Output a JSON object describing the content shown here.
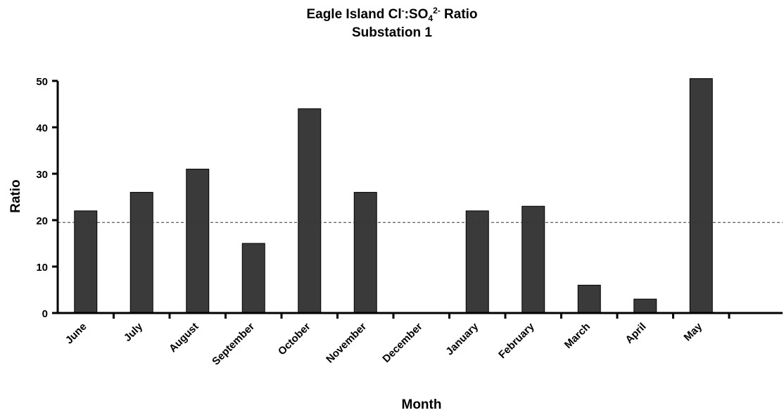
{
  "chart_data": {
    "type": "bar",
    "title": {
      "line1_prefix": "Eagle Island Cl",
      "line1_sup1": "-",
      "line1_mid": ":SO",
      "line1_sub": "4",
      "line1_sup2": "2-",
      "line1_suffix": " Ratio",
      "line2": "Substation 1"
    },
    "xlabel": "Month",
    "ylabel": "Ratio",
    "categories": [
      "June",
      "July",
      "August",
      "September",
      "October",
      "November",
      "December",
      "January",
      "February",
      "March",
      "April",
      "May"
    ],
    "values": [
      22,
      26,
      31,
      15,
      44,
      26,
      null,
      22,
      23,
      6,
      3,
      50.5
    ],
    "ylim": [
      0,
      50
    ],
    "yticks": [
      0,
      10,
      20,
      30,
      40,
      50
    ],
    "reference_line": {
      "value": 19.5,
      "style": "dashed"
    },
    "colors": {
      "bar": "#3a3a3a",
      "axis": "#000000"
    },
    "grid": false,
    "legend": "none"
  }
}
